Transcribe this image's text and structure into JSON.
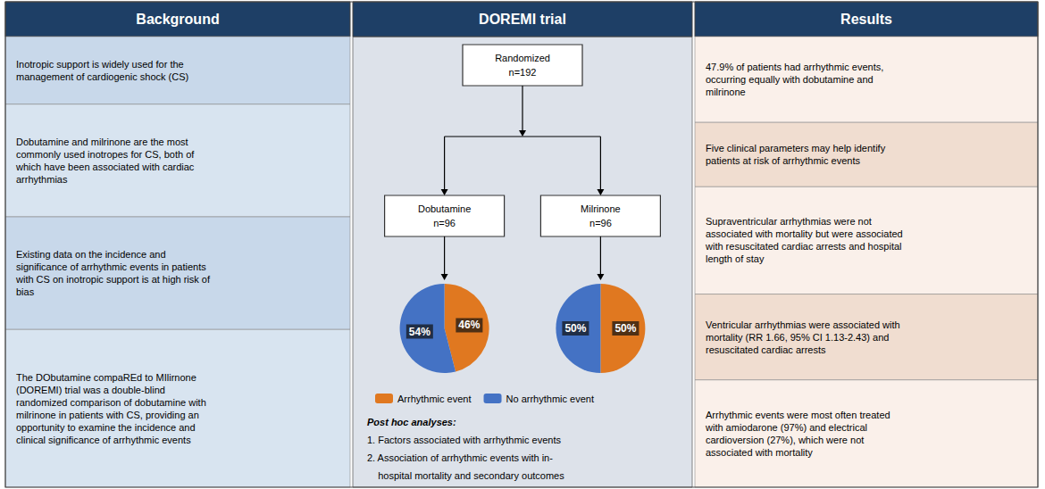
{
  "chart_data": {
    "type": "pie",
    "categories": [
      "Arrhythmic event",
      "No arrhythmic event"
    ],
    "colors": [
      "#e07820",
      "#4472c4"
    ],
    "series": [
      {
        "name": "Dobutamine\nn=96",
        "values": [
          46,
          54
        ],
        "value_labels": [
          "46%",
          "54%"
        ]
      },
      {
        "name": "Milrinone\nn=96",
        "values": [
          50,
          50
        ],
        "value_labels": [
          "50%",
          "50%"
        ]
      }
    ],
    "data_labels": true,
    "legend": "bottom",
    "annotations": [
      [
        "Background",
        "Inotropic support is widely used for the\nmanagement of cardiogenic shock (CS)",
        "Dobutamine and milrinone are the most\ncommonly used inotropes for CS, both of\nwhich have been associated with cardiac\narrhythmias",
        "Existing data on the incidence and\nsignificance of arrhythmic events in patients\nwith CS on inotropic support is at high risk of\nbias",
        "The DObutamine compaREd to MIlirnone\n(DOREMI) trial was a double-blind\nrandomized comparison of dobutamine with\nmilrinone in patients with CS, providing an\nopportunity to examine the incidence and\nclinical significance of arrhythmic events"
      ],
      [
        "DOREMI trial",
        "Randomized\nn=192",
        "Post hoc analyses:",
        "1. Factors associated with arrhythmic events",
        "2. Association of arrhythmic events with in-",
        "    hospital mortality and secondary outcomes"
      ],
      [
        "Results",
        "47.9% of patients had arrhythmic events,\noccurring equally with dobutamine and\nmilrinone",
        "Five clinical parameters may help identify\npatients at risk of arrhythmic events",
        "Supraventricular arrhythmias were not\nassociated with mortality but were associated\nwith resuscitated cardiac arrests and hospital\nlength of stay",
        "Ventricular arrhythmias were associated with\nmortality (RR 1.66, 95% CI 1.13-2.43) and\nresuscitated cardiac arrests",
        "Arrhythmic events were most often treated\nwith amiodarone (97%) and electrical\ncardioversion (27%), which were not\nassociated with mortality"
      ]
    ]
  }
}
